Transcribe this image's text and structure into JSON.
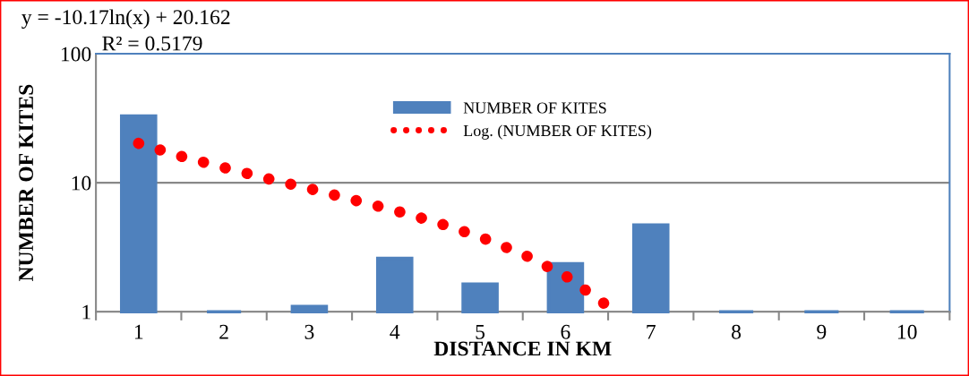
{
  "chart_data": {
    "type": "bar",
    "xlabel": "DISTANCE IN KM",
    "ylabel": "NUMBER OF KITES",
    "x": [
      1,
      2,
      3,
      4,
      5,
      6,
      7,
      8,
      9,
      10
    ],
    "xlim": [
      0.5,
      10.5
    ],
    "xticks": [
      1,
      2,
      3,
      4,
      5,
      6,
      7,
      8,
      9,
      10
    ],
    "series": [
      {
        "name": "NUMBER OF KITES",
        "color": "#4f81bd",
        "values": [
          33,
          1,
          1.1,
          2.6,
          1.64,
          2.36,
          4.7,
          1,
          1,
          1
        ]
      },
      {
        "name": "Log. (NUMBER OF KITES)",
        "type": "line",
        "color": "#ff0000",
        "line_style": "dotted",
        "x": [
          1,
          1.5,
          2,
          2.5,
          3,
          3.5,
          4,
          4.5,
          5,
          5.5,
          6,
          6.5
        ],
        "values": [
          20.2,
          16,
          13.1,
          10.8,
          9,
          7.4,
          6.1,
          4.9,
          3.8,
          2.8,
          1.9,
          1.1
        ]
      }
    ],
    "log": "y",
    "ylim": [
      1,
      100
    ],
    "yticks": [
      1,
      10,
      100
    ],
    "grid": "y",
    "legend": "top",
    "annotations": [
      "y = -10.17ln(x) + 20.162",
      "R² = 0.5179"
    ]
  }
}
